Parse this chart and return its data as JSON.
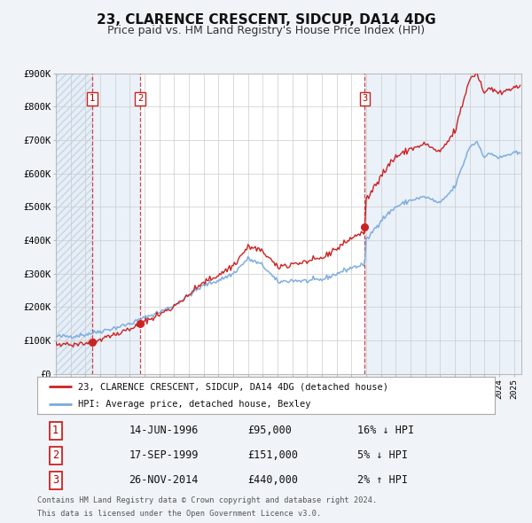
{
  "title": "23, CLARENCE CRESCENT, SIDCUP, DA14 4DG",
  "subtitle": "Price paid vs. HM Land Registry's House Price Index (HPI)",
  "title_fontsize": 11,
  "subtitle_fontsize": 9,
  "ylim": [
    0,
    900000
  ],
  "yticks": [
    0,
    100000,
    200000,
    300000,
    400000,
    500000,
    600000,
    700000,
    800000,
    900000
  ],
  "ytick_labels": [
    "£0",
    "£100K",
    "£200K",
    "£300K",
    "£400K",
    "£500K",
    "£600K",
    "£700K",
    "£800K",
    "£900K"
  ],
  "xlim_start": 1994.0,
  "xlim_end": 2025.5,
  "hpi_color": "#7aaadd",
  "price_color": "#cc2222",
  "marker_color": "#cc2222",
  "transactions": [
    {
      "label": "1",
      "date_year": 1996.45,
      "price": 95000,
      "pct": "16%",
      "direction": "↓",
      "date_str": "14-JUN-1996",
      "price_str": "£95,000"
    },
    {
      "label": "2",
      "date_year": 1999.71,
      "price": 151000,
      "pct": "5%",
      "direction": "↓",
      "date_str": "17-SEP-1999",
      "price_str": "£151,000"
    },
    {
      "label": "3",
      "date_year": 2014.9,
      "price": 440000,
      "pct": "2%",
      "direction": "↑",
      "date_str": "26-NOV-2014",
      "price_str": "£440,000"
    }
  ],
  "legend_entries": [
    {
      "label": "23, CLARENCE CRESCENT, SIDCUP, DA14 4DG (detached house)",
      "color": "#cc2222"
    },
    {
      "label": "HPI: Average price, detached house, Bexley",
      "color": "#7aaadd"
    }
  ],
  "footer_lines": [
    "Contains HM Land Registry data © Crown copyright and database right 2024.",
    "This data is licensed under the Open Government Licence v3.0."
  ],
  "bg_color": "#f0f4f8",
  "plot_bg_color": "#ffffff",
  "shade_color": "#dce8f5",
  "grid_color": "#cccccc"
}
